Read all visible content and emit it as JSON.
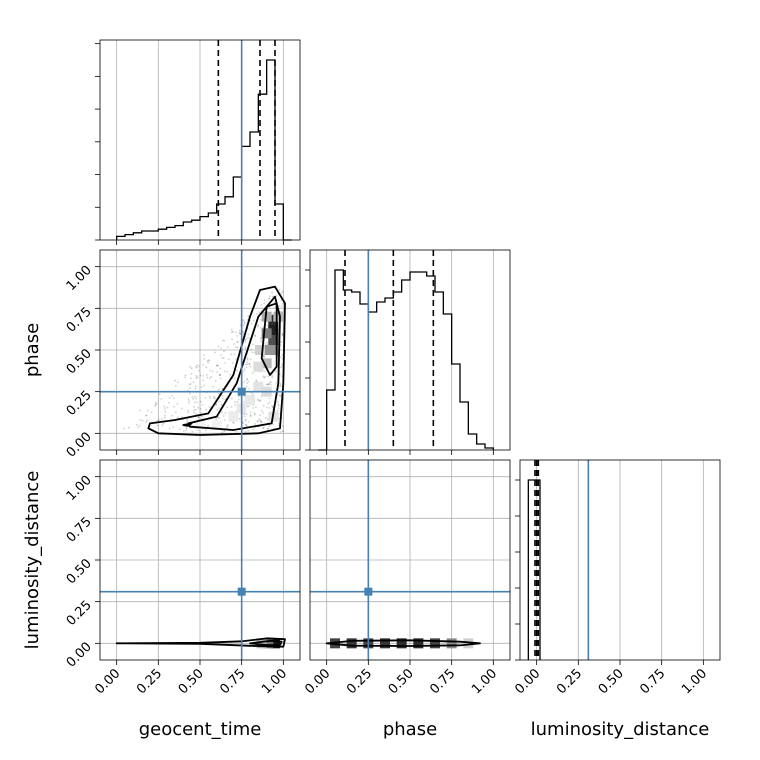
{
  "chart_data": {
    "type": "corner",
    "parameters": [
      "geocent_time",
      "phase",
      "luminosity_distance"
    ],
    "labels": {
      "x": [
        "geocent_time",
        "phase",
        "luminosity_distance"
      ],
      "y": [
        "phase",
        "luminosity_distance"
      ]
    },
    "tick_labels": [
      "0.00",
      "0.25",
      "0.50",
      "0.75",
      "1.00"
    ],
    "axis_range": [
      -0.1,
      1.1
    ],
    "truths": {
      "geocent_time": 0.75,
      "phase": 0.25,
      "luminosity_distance": 0.31
    },
    "truth_color": "#4682b4",
    "grid": true,
    "marginals": {
      "geocent_time": {
        "bin_edges": [
          0.0,
          0.05,
          0.1,
          0.15,
          0.2,
          0.25,
          0.3,
          0.35,
          0.4,
          0.45,
          0.5,
          0.55,
          0.6,
          0.65,
          0.7,
          0.75,
          0.8,
          0.85,
          0.9,
          0.95,
          1.0,
          1.05
        ],
        "counts": [
          0.02,
          0.03,
          0.04,
          0.05,
          0.05,
          0.06,
          0.07,
          0.08,
          0.1,
          0.11,
          0.13,
          0.15,
          0.2,
          0.24,
          0.35,
          0.52,
          0.6,
          0.81,
          1.0,
          0.2,
          0.0
        ],
        "quantiles": [
          0.61,
          0.86,
          0.95
        ]
      },
      "phase": {
        "bin_edges": [
          -0.05,
          0.0,
          0.05,
          0.1,
          0.15,
          0.2,
          0.25,
          0.3,
          0.35,
          0.4,
          0.45,
          0.5,
          0.55,
          0.6,
          0.65,
          0.7,
          0.75,
          0.8,
          0.85,
          0.9,
          0.95,
          1.0
        ],
        "counts": [
          0.0,
          0.3,
          0.9,
          0.8,
          0.79,
          0.73,
          0.69,
          0.74,
          0.76,
          0.79,
          0.85,
          0.89,
          0.89,
          0.87,
          0.79,
          0.68,
          0.43,
          0.24,
          0.08,
          0.03,
          0.01
        ],
        "quantiles": [
          0.11,
          0.4,
          0.64
        ]
      },
      "luminosity_distance": {
        "bin_edges": [
          -0.05,
          0.0,
          0.02
        ],
        "counts": [
          1.0,
          1.0
        ],
        "quantiles": [
          -0.01,
          0.0,
          0.01
        ]
      }
    },
    "density_2d": [
      {
        "x": "geocent_time",
        "y": "phase",
        "contours": [
          [
            [
              0.2,
              0.06
            ],
            [
              0.35,
              0.08
            ],
            [
              0.55,
              0.12
            ],
            [
              0.7,
              0.35
            ],
            [
              0.8,
              0.7
            ],
            [
              0.86,
              0.86
            ],
            [
              0.95,
              0.88
            ],
            [
              1.01,
              0.78
            ],
            [
              1.0,
              0.3
            ],
            [
              0.98,
              0.03
            ],
            [
              0.85,
              0.0
            ],
            [
              0.5,
              -0.01
            ],
            [
              0.25,
              0.0
            ],
            [
              0.19,
              0.03
            ]
          ],
          [
            [
              0.43,
              0.06
            ],
            [
              0.6,
              0.1
            ],
            [
              0.72,
              0.3
            ],
            [
              0.85,
              0.7
            ],
            [
              0.95,
              0.82
            ],
            [
              0.98,
              0.7
            ],
            [
              0.97,
              0.3
            ],
            [
              0.93,
              0.06
            ],
            [
              0.7,
              0.02
            ],
            [
              0.44,
              0.04
            ]
          ],
          [
            [
              0.87,
              0.45
            ],
            [
              0.9,
              0.76
            ],
            [
              0.96,
              0.78
            ],
            [
              0.96,
              0.4
            ],
            [
              0.92,
              0.35
            ]
          ],
          [
            [
              0.4,
              0.05
            ],
            [
              0.45,
              0.06
            ],
            [
              0.43,
              0.045
            ]
          ]
        ],
        "density_cells": [
          [
            0.94,
            0.68,
            0.9
          ],
          [
            0.94,
            0.62,
            0.95
          ],
          [
            0.94,
            0.56,
            0.75
          ],
          [
            0.9,
            0.6,
            0.55
          ],
          [
            0.9,
            0.5,
            0.45
          ],
          [
            0.94,
            0.5,
            0.45
          ],
          [
            0.9,
            0.7,
            0.35
          ],
          [
            0.97,
            0.7,
            0.3
          ],
          [
            0.9,
            0.42,
            0.3
          ],
          [
            0.86,
            0.5,
            0.2
          ],
          [
            0.85,
            0.4,
            0.15
          ],
          [
            0.85,
            0.28,
            0.12
          ],
          [
            0.8,
            0.2,
            0.1
          ],
          [
            0.9,
            0.25,
            0.15
          ],
          [
            0.75,
            0.15,
            0.1
          ],
          [
            0.7,
            0.1,
            0.08
          ],
          [
            0.94,
            0.1,
            0.12
          ],
          [
            0.6,
            0.05,
            0.06
          ],
          [
            0.5,
            0.05,
            0.05
          ]
        ]
      },
      {
        "x": "geocent_time",
        "y": "luminosity_distance",
        "contours": [
          [
            [
              0.0,
              0.0
            ],
            [
              0.5,
              0.003
            ],
            [
              0.75,
              0.012
            ],
            [
              0.9,
              0.03
            ],
            [
              1.01,
              0.025
            ],
            [
              1.0,
              -0.02
            ],
            [
              0.8,
              -0.015
            ],
            [
              0.5,
              -0.003
            ],
            [
              0.0,
              0.0
            ]
          ],
          [
            [
              0.8,
              0.0
            ],
            [
              0.92,
              0.015
            ],
            [
              0.99,
              0.01
            ],
            [
              0.98,
              -0.01
            ],
            [
              0.9,
              -0.01
            ],
            [
              0.8,
              0.0
            ]
          ]
        ],
        "density_cells": [
          [
            0.95,
            0.0,
            1.0
          ],
          [
            0.91,
            0.0,
            0.6
          ],
          [
            0.87,
            0.0,
            0.3
          ]
        ]
      },
      {
        "x": "phase",
        "y": "luminosity_distance",
        "contours": [
          [
            [
              0.0,
              0.0
            ],
            [
              0.15,
              0.015
            ],
            [
              0.5,
              0.018
            ],
            [
              0.8,
              0.01
            ],
            [
              0.92,
              0.0
            ],
            [
              0.8,
              -0.012
            ],
            [
              0.5,
              -0.016
            ],
            [
              0.15,
              -0.014
            ],
            [
              0.0,
              0.0
            ]
          ]
        ],
        "density_cells": [
          [
            0.05,
            0.0,
            0.8
          ],
          [
            0.15,
            0.0,
            0.85
          ],
          [
            0.25,
            0.0,
            0.8
          ],
          [
            0.35,
            0.0,
            0.85
          ],
          [
            0.45,
            0.0,
            0.9
          ],
          [
            0.55,
            0.0,
            0.9
          ],
          [
            0.65,
            0.0,
            0.8
          ],
          [
            0.75,
            0.0,
            0.5
          ],
          [
            0.85,
            0.0,
            0.2
          ]
        ]
      }
    ]
  }
}
